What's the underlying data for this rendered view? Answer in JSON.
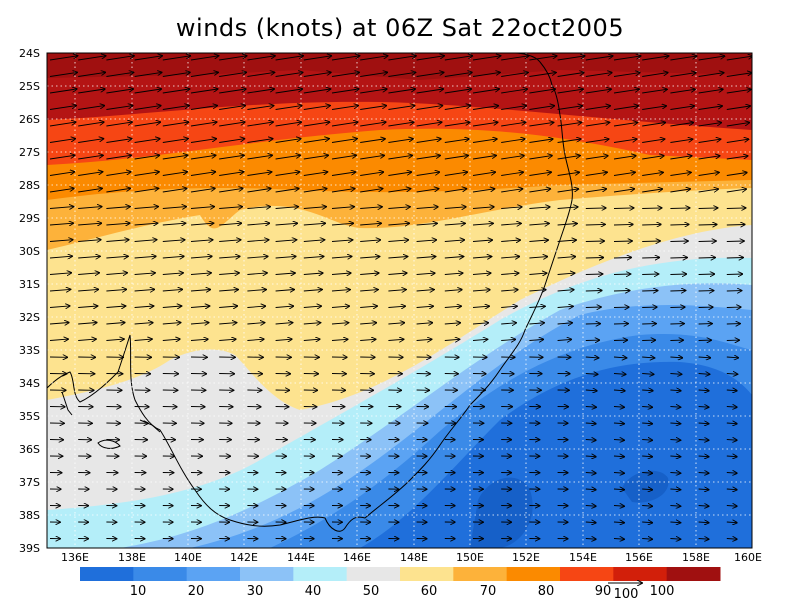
{
  "title": "winds (knots) at 06Z Sat 22oct2005",
  "lat_labels": [
    "24S",
    "25S",
    "26S",
    "27S",
    "28S",
    "29S",
    "30S",
    "31S",
    "32S",
    "33S",
    "34S",
    "35S",
    "36S",
    "37S",
    "38S",
    "39S"
  ],
  "lon_labels": [
    "136E",
    "138E",
    "140E",
    "142E",
    "144E",
    "146E",
    "148E",
    "150E",
    "152E",
    "154E",
    "156E",
    "158E",
    "160E"
  ],
  "colorbar": {
    "colors": [
      "#1f6fdb",
      "#3a8ae8",
      "#5ba3f3",
      "#8cc2f7",
      "#b4eef9",
      "#e7e7e7",
      "#fde38f",
      "#fdb23a",
      "#fb8a00",
      "#f64614",
      "#d21f0a",
      "#a01010"
    ],
    "labels": [
      "10",
      "20",
      "30",
      "40",
      "50",
      "60",
      "70",
      "80",
      "90",
      "100"
    ]
  },
  "reference_vector": {
    "label": "100"
  },
  "map_extent": {
    "lon": [
      135,
      160
    ],
    "lat": [
      -39,
      -24
    ]
  },
  "wind_speed_bands_knots": [
    10,
    20,
    30,
    40,
    50,
    60,
    70,
    80,
    90,
    100
  ],
  "grid": "dotted"
}
